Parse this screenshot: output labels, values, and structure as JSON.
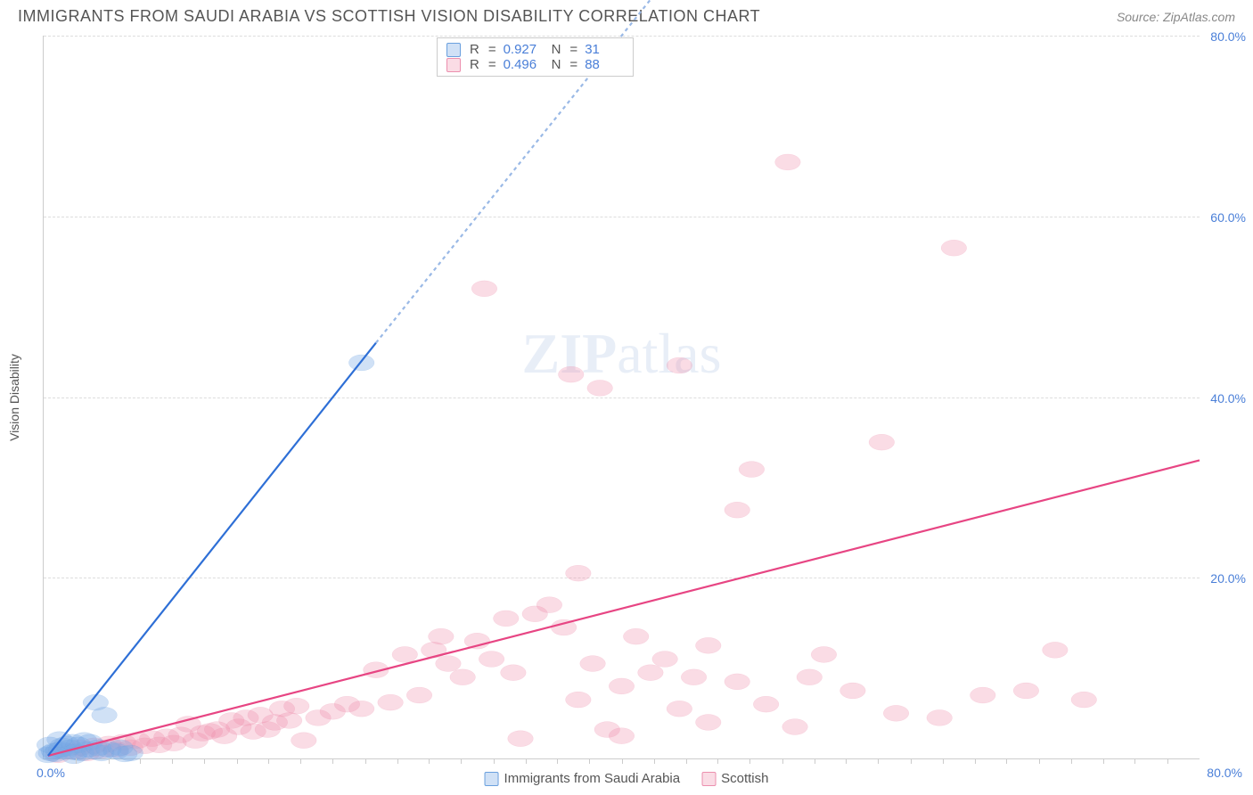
{
  "header": {
    "title": "IMMIGRANTS FROM SAUDI ARABIA VS SCOTTISH VISION DISABILITY CORRELATION CHART",
    "source_prefix": "Source: ",
    "source": "ZipAtlas.com"
  },
  "watermark": {
    "bold": "ZIP",
    "light": "atlas"
  },
  "chart": {
    "type": "scatter",
    "xlim": [
      0,
      80
    ],
    "ylim": [
      0,
      80
    ],
    "x_origin_label": "0.0%",
    "x_max_label": "80.0%",
    "yticks": [
      20,
      40,
      60,
      80
    ],
    "ytick_labels": [
      "20.0%",
      "40.0%",
      "60.0%",
      "80.0%"
    ],
    "xtick_minor_positions_pct": [
      2.8,
      5.6,
      8.3,
      11.1,
      13.9,
      16.7,
      19.4,
      22.2,
      25,
      27.8,
      30.6,
      33.3,
      36.1,
      38.9,
      41.7,
      44.4,
      47.2,
      50,
      52.8,
      55.6,
      58.3,
      61.1,
      63.9,
      66.7,
      69.4,
      72.2,
      75,
      77.8,
      80.6,
      83.3,
      86.1,
      88.9,
      91.7,
      94.4,
      97.2
    ],
    "yaxis_label": "Vision Disability",
    "grid_color": "#dddddd",
    "axis_color": "#cccccc",
    "background_color": "#ffffff",
    "tick_label_color": "#4a7fd8",
    "marker_radius": 9,
    "marker_stroke_width": 1.2,
    "trend_line_width": 2.2,
    "series": [
      {
        "id": "saudi",
        "name": "Immigrants from Saudi Arabia",
        "fill_color": "rgba(120,170,230,0.35)",
        "stroke_color": "#6aa0de",
        "line_color": "#2e6fd6",
        "dash_color": "#9ab9e6",
        "r": 0.927,
        "n": 31,
        "trend": {
          "x1": 0.3,
          "y1": 0.3,
          "x2": 23,
          "y2": 46,
          "dash_x2": 43,
          "dash_y2": 86
        },
        "points": [
          [
            0.3,
            0.4
          ],
          [
            0.5,
            0.6
          ],
          [
            0.7,
            0.8
          ],
          [
            0.8,
            0.5
          ],
          [
            1.0,
            0.9
          ],
          [
            1.2,
            1.0
          ],
          [
            1.3,
            1.4
          ],
          [
            1.5,
            0.8
          ],
          [
            1.6,
            1.6
          ],
          [
            1.8,
            1.2
          ],
          [
            2.0,
            1.8
          ],
          [
            2.2,
            0.7
          ],
          [
            2.4,
            1.5
          ],
          [
            2.6,
            0.6
          ],
          [
            2.8,
            2.0
          ],
          [
            3.0,
            1.0
          ],
          [
            3.2,
            1.8
          ],
          [
            3.5,
            0.8
          ],
          [
            3.8,
            1.2
          ],
          [
            4.0,
            0.6
          ],
          [
            4.2,
            4.8
          ],
          [
            4.5,
            1.0
          ],
          [
            5.0,
            0.8
          ],
          [
            5.3,
            1.2
          ],
          [
            5.6,
            0.5
          ],
          [
            3.6,
            6.2
          ],
          [
            6.0,
            0.6
          ],
          [
            2.1,
            0.3
          ],
          [
            1.1,
            2.1
          ],
          [
            0.4,
            1.5
          ],
          [
            22.0,
            43.8
          ]
        ]
      },
      {
        "id": "scottish",
        "name": "Scottish",
        "fill_color": "rgba(240,140,170,0.30)",
        "stroke_color": "#ec8fae",
        "line_color": "#e74583",
        "r": 0.496,
        "n": 88,
        "trend": {
          "x1": 0.3,
          "y1": 0.3,
          "x2": 80,
          "y2": 33
        },
        "points": [
          [
            1,
            0.4
          ],
          [
            2,
            0.8
          ],
          [
            2.5,
            1.2
          ],
          [
            3,
            0.6
          ],
          [
            3.5,
            1.4
          ],
          [
            4,
            0.9
          ],
          [
            4.5,
            1.6
          ],
          [
            5,
            1.0
          ],
          [
            5.5,
            1.8
          ],
          [
            6,
            1.2
          ],
          [
            6.5,
            2.0
          ],
          [
            7,
            1.4
          ],
          [
            7.5,
            2.2
          ],
          [
            8,
            1.5
          ],
          [
            8.5,
            2.4
          ],
          [
            9,
            1.7
          ],
          [
            9.5,
            2.6
          ],
          [
            10,
            3.8
          ],
          [
            10.5,
            2.0
          ],
          [
            11,
            2.8
          ],
          [
            11.5,
            3.0
          ],
          [
            12,
            3.2
          ],
          [
            12.5,
            2.5
          ],
          [
            13,
            4.2
          ],
          [
            13.5,
            3.5
          ],
          [
            14,
            4.5
          ],
          [
            14.5,
            3.0
          ],
          [
            15,
            4.8
          ],
          [
            15.5,
            3.2
          ],
          [
            16,
            4.0
          ],
          [
            16.5,
            5.5
          ],
          [
            17,
            4.2
          ],
          [
            17.5,
            5.8
          ],
          [
            18,
            2.0
          ],
          [
            19,
            4.5
          ],
          [
            20,
            5.2
          ],
          [
            21,
            6.0
          ],
          [
            22,
            5.5
          ],
          [
            23,
            9.8
          ],
          [
            24,
            6.2
          ],
          [
            25,
            11.5
          ],
          [
            26,
            7.0
          ],
          [
            27,
            12.0
          ],
          [
            27.5,
            13.5
          ],
          [
            28,
            10.5
          ],
          [
            29,
            9.0
          ],
          [
            30,
            13.0
          ],
          [
            30.5,
            52.0
          ],
          [
            31,
            11.0
          ],
          [
            32,
            15.5
          ],
          [
            32.5,
            9.5
          ],
          [
            33,
            2.2
          ],
          [
            34,
            16.0
          ],
          [
            35,
            17.0
          ],
          [
            36,
            14.5
          ],
          [
            36.5,
            42.5
          ],
          [
            37,
            20.5
          ],
          [
            38,
            10.5
          ],
          [
            38.5,
            41.0
          ],
          [
            39,
            3.2
          ],
          [
            40,
            8.0
          ],
          [
            40,
            2.5
          ],
          [
            42,
            9.5
          ],
          [
            43,
            11.0
          ],
          [
            44,
            43.5
          ],
          [
            45,
            9.0
          ],
          [
            46,
            4.0
          ],
          [
            48,
            27.5
          ],
          [
            48,
            8.5
          ],
          [
            49,
            32.0
          ],
          [
            51.5,
            66.0
          ],
          [
            52,
            3.5
          ],
          [
            53,
            9.0
          ],
          [
            54,
            11.5
          ],
          [
            56,
            7.5
          ],
          [
            58,
            35.0
          ],
          [
            59,
            5.0
          ],
          [
            63,
            56.5
          ],
          [
            65,
            7.0
          ],
          [
            68,
            7.5
          ],
          [
            70,
            12.0
          ],
          [
            72,
            6.5
          ],
          [
            62,
            4.5
          ],
          [
            44,
            5.5
          ],
          [
            50,
            6.0
          ],
          [
            46,
            12.5
          ],
          [
            37,
            6.5
          ],
          [
            41,
            13.5
          ]
        ]
      }
    ]
  },
  "legend_stats": {
    "r_label": "R",
    "n_label": "N",
    "equals": "="
  },
  "bottom_legend": {
    "items": [
      "Immigrants from Saudi Arabia",
      "Scottish"
    ]
  }
}
